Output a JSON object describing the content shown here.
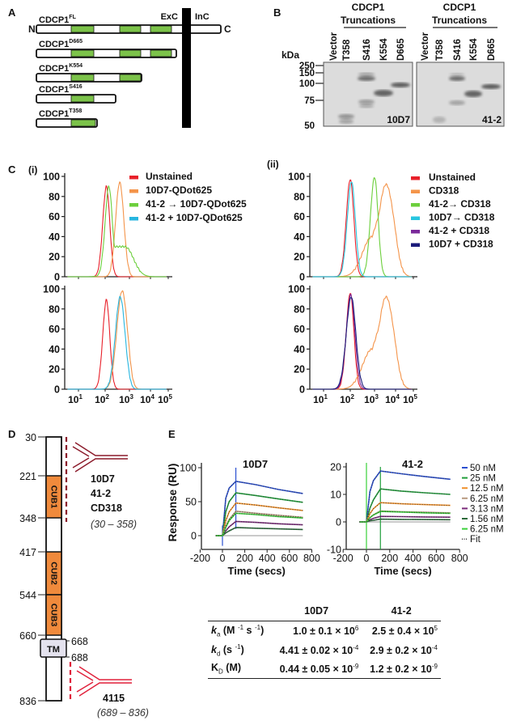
{
  "panel_labels": {
    "a": "A",
    "b": "B",
    "c": "C",
    "d": "D",
    "e": "E"
  },
  "panel_a": {
    "n_term": "N",
    "c_term": "C",
    "exc": "ExC",
    "inc": "InC",
    "constructs": [
      {
        "name": "CDCP1",
        "sup": "FL"
      },
      {
        "name": "CDCP1",
        "sup": "D665"
      },
      {
        "name": "CDCP1",
        "sup": "K554"
      },
      {
        "name": "CDCP1",
        "sup": "S416"
      },
      {
        "name": "CDCP1",
        "sup": "T358"
      }
    ],
    "colors": {
      "cub_domain": "#7cc34a",
      "membrane": "#000000"
    }
  },
  "panel_b": {
    "group_title": [
      "CDCP1",
      "Truncations"
    ],
    "kda": "kDa",
    "markers": [
      "250",
      "150",
      "100",
      "75",
      "50"
    ],
    "lanes": [
      "Vector",
      "T358",
      "S416",
      "K554",
      "D665"
    ],
    "blots": [
      "10D7",
      "41-2"
    ]
  },
  "panel_c": {
    "sub_i": "(i)",
    "sub_ii": "(ii)",
    "y_ticks": [
      "0",
      "20",
      "40",
      "60",
      "80",
      "100"
    ],
    "x_ticks": [
      {
        "base": "10",
        "exp": "1"
      },
      {
        "base": "10",
        "exp": "2"
      },
      {
        "base": "10",
        "exp": "3"
      },
      {
        "base": "10",
        "exp": "4"
      },
      {
        "base": "10",
        "exp": "5"
      }
    ]
  },
  "panel_d": {
    "positions": [
      "30",
      "221",
      "348",
      "417",
      "544",
      "660",
      "836"
    ],
    "tm_positions": [
      "668",
      "688"
    ],
    "domains": [
      "CUB1",
      "CUB2",
      "CUB3"
    ],
    "tm": "TM",
    "epitope_top": {
      "antibodies": [
        "10D7",
        "41-2",
        "CD318"
      ],
      "range": "(30 – 358)"
    },
    "epitope_bottom": {
      "antibodies": [
        "4115"
      ],
      "range": "(689 – 836)"
    },
    "colors": {
      "cub": "#f08a3c",
      "tm": "#e4e2ee",
      "antibody_top": "#8b1a2a",
      "antibody_bottom": "#e0203a"
    }
  },
  "panel_e": {
    "table": {
      "columns": [
        "10D7",
        "41-2"
      ],
      "rows": [
        {
          "label": [
            {
              "t": "k",
              "s": "i"
            },
            {
              "t": "a",
              "s": "sub"
            },
            {
              "t": " (M ",
              "s": ""
            },
            {
              "t": "-1",
              "s": "sup"
            },
            {
              "t": " s ",
              "s": ""
            },
            {
              "t": "-1",
              "s": "sup"
            },
            {
              "t": ")",
              "s": ""
            }
          ],
          "values": [
            {
              "base": "1.0 ± 0.1 × 10",
              "exp": "6"
            },
            {
              "base": "2.5 ± 0.4 × 10",
              "exp": "5"
            }
          ]
        },
        {
          "label": [
            {
              "t": "k",
              "s": "i"
            },
            {
              "t": "d",
              "s": "sub"
            },
            {
              "t": " (s ",
              "s": ""
            },
            {
              "t": "-1",
              "s": "sup"
            },
            {
              "t": ")",
              "s": ""
            }
          ],
          "values": [
            {
              "base": "4.41 ± 0.02 × 10",
              "exp": "-4"
            },
            {
              "base": "2.9 ± 0.2 × 10",
              "exp": "-4"
            }
          ]
        },
        {
          "label": [
            {
              "t": "K",
              "s": ""
            },
            {
              "t": "D",
              "s": "sub"
            },
            {
              "t": " (M)",
              "s": ""
            }
          ],
          "values": [
            {
              "base": "0.44 ± 0.05 × 10",
              "exp": "-9"
            },
            {
              "base": "1.2 ± 0.2 × 10",
              "exp": "-9"
            }
          ]
        }
      ]
    }
  },
  "chart_data": [
    {
      "type": "line",
      "id": "flow-i-top",
      "xscale": "log",
      "xlim": [
        10,
        100000
      ],
      "ylim": [
        0,
        100
      ],
      "series": [
        {
          "name": "Unstained",
          "color": "#e8202a",
          "peak_log10": 2.05,
          "peak_pct": 90,
          "spread_log10": 0.14
        },
        {
          "name": "10D7-QDot625",
          "color": "#f4944a",
          "peak_log10": 2.6,
          "peak_pct": 94,
          "spread_log10": 0.17
        },
        {
          "name": "41-2 → 10D7-QDot625",
          "color": "#6ccf3c",
          "peak_log10": 2.15,
          "peak_pct": 90,
          "spread_log10": 0.15,
          "shoulder_log10": 2.8,
          "shoulder_pct": 30
        }
      ]
    },
    {
      "type": "line",
      "id": "flow-i-bottom",
      "xscale": "log",
      "xlim": [
        10,
        100000
      ],
      "ylim": [
        0,
        100
      ],
      "series": [
        {
          "name": "Unstained",
          "color": "#e8202a",
          "peak_log10": 2.05,
          "peak_pct": 89,
          "spread_log10": 0.14
        },
        {
          "name": "10D7-QDot625",
          "color": "#f4944a",
          "peak_log10": 2.7,
          "peak_pct": 98,
          "spread_log10": 0.22
        },
        {
          "name": "41-2 + 10D7-QDot625",
          "color": "#27b6e0",
          "peak_log10": 2.62,
          "peak_pct": 92,
          "spread_log10": 0.2
        }
      ]
    },
    {
      "type": "line",
      "id": "flow-ii-top",
      "xscale": "log",
      "xlim": [
        10,
        100000
      ],
      "ylim": [
        0,
        100
      ],
      "series": [
        {
          "name": "Unstained",
          "color": "#e8202a",
          "peak_log10": 2.0,
          "peak_pct": 97,
          "spread_log10": 0.15
        },
        {
          "name": "CD318",
          "color": "#f4944a",
          "peak_log10": 3.55,
          "peak_pct": 92,
          "spread_log10": 0.38,
          "shoulder_log10": 2.9,
          "shoulder_pct": 40
        },
        {
          "name": "41-2→ CD318",
          "color": "#6ccf3c",
          "peak_log10": 3.0,
          "peak_pct": 99,
          "spread_log10": 0.17
        },
        {
          "name": "10D7→ CD318",
          "color": "#27c6e0",
          "peak_log10": 2.05,
          "peak_pct": 95,
          "spread_log10": 0.16
        }
      ]
    },
    {
      "type": "line",
      "id": "flow-ii-bottom",
      "xscale": "log",
      "xlim": [
        10,
        100000
      ],
      "ylim": [
        0,
        100
      ],
      "series": [
        {
          "name": "Unstained",
          "color": "#e8202a",
          "peak_log10": 2.0,
          "peak_pct": 96,
          "spread_log10": 0.15
        },
        {
          "name": "CD318",
          "color": "#f4944a",
          "peak_log10": 3.55,
          "peak_pct": 92,
          "spread_log10": 0.38,
          "shoulder_log10": 2.9,
          "shoulder_pct": 40
        },
        {
          "name": "41-2 + CD318",
          "color": "#7a2a9a",
          "peak_log10": 2.02,
          "peak_pct": 94,
          "spread_log10": 0.17
        },
        {
          "name": "10D7 + CD318",
          "color": "#1a1a7a",
          "peak_log10": 2.04,
          "peak_pct": 92,
          "spread_log10": 0.19
        }
      ]
    },
    {
      "type": "line",
      "id": "spr-10D7",
      "title": "10D7",
      "xlabel": "Time (secs)",
      "ylabel": "Response (RU)",
      "xlim": [
        -200,
        800
      ],
      "ylim": [
        -20,
        100
      ],
      "xticks": [
        "-200",
        "0",
        "200",
        "400",
        "600",
        "800"
      ],
      "yticks": [
        "0",
        "50",
        "100"
      ],
      "x": [
        -60,
        0,
        30,
        60,
        120,
        300,
        500,
        720
      ],
      "series": [
        {
          "name": "50 nM",
          "color": "#2a4fd0",
          "values": [
            0,
            0,
            55,
            70,
            80,
            75,
            68,
            62
          ]
        },
        {
          "name": "25 nM",
          "color": "#1f9e3a",
          "values": [
            0,
            0,
            35,
            50,
            63,
            59,
            54,
            49
          ]
        },
        {
          "name": "12.5 nM",
          "color": "#f0902a",
          "values": [
            0,
            0,
            22,
            35,
            48,
            45,
            41,
            37
          ]
        },
        {
          "name": "6.25 nM",
          "color": "#b89a80",
          "values": [
            0,
            0,
            14,
            24,
            36,
            33,
            30,
            27
          ]
        },
        {
          "name": "3.13 nM",
          "color": "#7a2a7a",
          "values": [
            0,
            0,
            7,
            13,
            21,
            19.5,
            17.5,
            16
          ]
        },
        {
          "name": "1.56 nM",
          "color": "#2a6a3a",
          "values": [
            0,
            0,
            4,
            7,
            12,
            11,
            10,
            9
          ]
        },
        {
          "name": "6.25 nM",
          "color": "#3ad03a",
          "values": [
            0,
            0,
            12,
            22,
            33,
            31,
            28,
            26
          ]
        }
      ],
      "fit": {
        "name": "Fit",
        "color": "#333333"
      }
    },
    {
      "type": "line",
      "id": "spr-41-2",
      "title": "41-2",
      "xlabel": "Time (secs)",
      "xlim": [
        -200,
        800
      ],
      "ylim": [
        -10,
        20
      ],
      "xticks": [
        "-200",
        "0",
        "200",
        "400",
        "600",
        "800"
      ],
      "yticks": [
        "-10",
        "0",
        "10",
        "20"
      ],
      "x": [
        -60,
        0,
        30,
        60,
        120,
        300,
        500,
        720
      ],
      "series": [
        {
          "name": "50 nM",
          "color": "#2a4fd0",
          "values": [
            0,
            0,
            11,
            15,
            18.5,
            17.5,
            16.5,
            15.5
          ]
        },
        {
          "name": "25 nM",
          "color": "#1f9e3a",
          "values": [
            0,
            0,
            5,
            8,
            12,
            11.2,
            10.6,
            10
          ]
        },
        {
          "name": "12.5 nM",
          "color": "#f0902a",
          "values": [
            0,
            0,
            3,
            4.8,
            7,
            6.6,
            6.3,
            6
          ]
        },
        {
          "name": "6.25 nM",
          "color": "#b89a80",
          "values": [
            0,
            0,
            1.6,
            2.6,
            4,
            3.7,
            3.5,
            3.3
          ]
        },
        {
          "name": "3.13 nM",
          "color": "#7a2a7a",
          "values": [
            0,
            0,
            0.8,
            1.3,
            2,
            1.9,
            1.8,
            1.7
          ]
        },
        {
          "name": "1.56 nM",
          "color": "#2a6a3a",
          "values": [
            0,
            0,
            0.4,
            0.6,
            1,
            0.9,
            0.85,
            0.8
          ]
        },
        {
          "name": "6.25 nM",
          "color": "#3ad03a",
          "values": [
            0,
            0,
            1.5,
            2.5,
            3.8,
            3.6,
            3.3,
            3.1
          ]
        }
      ],
      "fit": {
        "name": "Fit",
        "color": "#333333"
      }
    }
  ]
}
